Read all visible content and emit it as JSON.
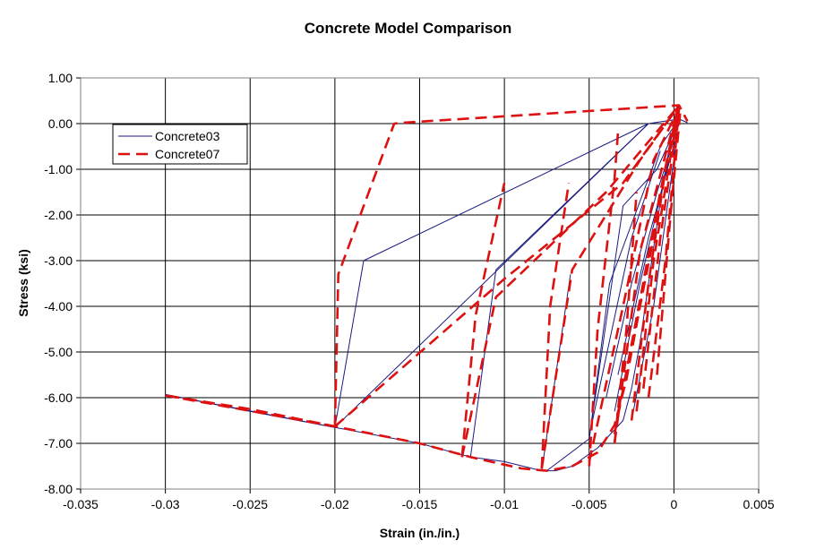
{
  "chart_data": {
    "type": "line",
    "title": "Concrete Model Comparison",
    "xlabel": "Strain (in./in.)",
    "ylabel": "Stress (ksi)",
    "xlim": [
      -0.035,
      0.005
    ],
    "ylim": [
      -8.0,
      1.0
    ],
    "xticks": [
      -0.035,
      -0.03,
      -0.025,
      -0.02,
      -0.015,
      -0.01,
      -0.005,
      0,
      0.005
    ],
    "xtick_labels": [
      "-0.035",
      "-0.03",
      "-0.025",
      "-0.02",
      "-0.015",
      "-0.01",
      "-0.005",
      "0",
      "0.005"
    ],
    "yticks": [
      1.0,
      0.0,
      -1.0,
      -2.0,
      -3.0,
      -4.0,
      -5.0,
      -6.0,
      -7.0,
      -8.0
    ],
    "ytick_labels": [
      "1.00",
      "0.00",
      "-1.00",
      "-2.00",
      "-3.00",
      "-4.00",
      "-5.00",
      "-6.00",
      "-7.00",
      "-8.00"
    ],
    "grid": true,
    "legend_position": "top-left",
    "series": [
      {
        "name": "Concrete03",
        "color": "#1a1a80",
        "style": "solid",
        "segments": [
          [
            [
              0,
              0
            ],
            [
              -0.0005,
              -1.0
            ],
            [
              -0.001,
              -2.2
            ],
            [
              -0.0015,
              -3.5
            ],
            [
              -0.002,
              -4.8
            ],
            [
              -0.0025,
              -5.8
            ],
            [
              -0.003,
              -6.5
            ],
            [
              -0.0045,
              -7.1
            ],
            [
              -0.006,
              -7.5
            ],
            [
              -0.007,
              -7.6
            ],
            [
              -0.0078,
              -7.6
            ],
            [
              -0.01,
              -7.4
            ],
            [
              -0.012,
              -7.3
            ],
            [
              -0.015,
              -7.0
            ],
            [
              -0.02,
              -6.65
            ],
            [
              -0.025,
              -6.3
            ],
            [
              -0.03,
              -5.93
            ]
          ],
          [
            [
              -0.03,
              -5.93
            ],
            [
              -0.02,
              -6.65
            ]
          ],
          [
            [
              -0.02,
              -6.65
            ],
            [
              -0.0183,
              -3.0
            ],
            [
              -0.0015,
              0.0
            ],
            [
              0.0003,
              0.1
            ]
          ],
          [
            [
              -0.02,
              -6.65
            ],
            [
              -0.0015,
              0.0
            ]
          ],
          [
            [
              -0.012,
              -7.3
            ],
            [
              -0.0105,
              -3.2
            ],
            [
              -0.0015,
              0.0
            ]
          ],
          [
            [
              -0.0078,
              -7.6
            ],
            [
              -0.0061,
              -3.3
            ]
          ],
          [
            [
              -0.0075,
              -7.6
            ],
            [
              -0.005,
              -6.9
            ],
            [
              -0.0038,
              -3.5
            ],
            [
              -0.0008,
              -0.5
            ],
            [
              0.0003,
              0.1
            ]
          ],
          [
            [
              -0.005,
              -6.9
            ],
            [
              -0.003,
              -1.8
            ],
            [
              -0.001,
              -1.0
            ],
            [
              0.0004,
              0.15
            ]
          ],
          [
            [
              -0.0048,
              -6.5
            ],
            [
              -0.0025,
              -2.5
            ],
            [
              -0.0008,
              -0.6
            ]
          ],
          [
            [
              -0.0035,
              -6.3
            ],
            [
              -0.002,
              -3.5
            ],
            [
              -0.0003,
              -0.8
            ]
          ],
          [
            [
              -0.0033,
              -5.5
            ],
            [
              -0.0015,
              -2.5
            ],
            [
              0.0002,
              -0.2
            ]
          ],
          [
            [
              -0.0025,
              -6.5
            ],
            [
              -0.0012,
              -4.0
            ],
            [
              0.0001,
              -0.5
            ]
          ],
          [
            [
              -0.004,
              -6.0
            ],
            [
              -0.0025,
              -3.5
            ],
            [
              -0.001,
              -1.5
            ],
            [
              0.0004,
              0.1
            ]
          ],
          [
            [
              0.0003,
              0.1
            ],
            [
              0.0008,
              0.02
            ]
          ]
        ]
      },
      {
        "name": "Concrete07",
        "color": "#dd1111",
        "style": "dashed",
        "segments": [
          [
            [
              0.0003,
              0.4
            ],
            [
              -0.0005,
              -1.0
            ],
            [
              -0.0012,
              -2.5
            ],
            [
              -0.002,
              -4.0
            ],
            [
              -0.0028,
              -5.6
            ],
            [
              -0.0035,
              -6.6
            ],
            [
              -0.0045,
              -7.2
            ],
            [
              -0.006,
              -7.5
            ],
            [
              -0.0075,
              -7.6
            ],
            [
              -0.009,
              -7.55
            ],
            [
              -0.012,
              -7.3
            ],
            [
              -0.015,
              -7.0
            ],
            [
              -0.02,
              -6.63
            ],
            [
              -0.025,
              -6.25
            ],
            [
              -0.03,
              -5.95
            ]
          ],
          [
            [
              -0.03,
              -5.95
            ],
            [
              -0.02,
              -6.63
            ]
          ],
          [
            [
              -0.02,
              -6.63
            ],
            [
              -0.0198,
              -3.3
            ],
            [
              -0.0165,
              0.0
            ],
            [
              -0.016,
              0.02
            ],
            [
              0.0003,
              0.4
            ],
            [
              0.0008,
              0.05
            ]
          ],
          [
            [
              -0.02,
              -6.63
            ],
            [
              -0.01,
              -3.4
            ],
            [
              -0.003,
              -1.3
            ],
            [
              0.0003,
              0.4
            ]
          ],
          [
            [
              -0.0125,
              -7.3
            ],
            [
              -0.0117,
              -4.2
            ],
            [
              -0.01,
              -1.3
            ]
          ],
          [
            [
              -0.0125,
              -7.3
            ],
            [
              -0.0105,
              -3.8
            ],
            [
              -0.004,
              -1.5
            ],
            [
              0.0003,
              0.4
            ]
          ],
          [
            [
              -0.0078,
              -7.55
            ],
            [
              -0.0073,
              -4.0
            ],
            [
              -0.0062,
              -1.3
            ]
          ],
          [
            [
              -0.0078,
              -7.55
            ],
            [
              -0.006,
              -3.2
            ],
            [
              -0.002,
              -0.8
            ],
            [
              0.0003,
              0.4
            ]
          ],
          [
            [
              -0.005,
              -7.5
            ],
            [
              -0.0045,
              -4.5
            ],
            [
              -0.0035,
              -1.2
            ],
            [
              -0.0033,
              -0.2
            ]
          ],
          [
            [
              -0.005,
              -7.4
            ],
            [
              -0.003,
              -4.0
            ],
            [
              -0.0012,
              -0.8
            ],
            [
              0.0003,
              0.35
            ]
          ],
          [
            [
              -0.0035,
              -7.0
            ],
            [
              -0.0028,
              -4.5
            ],
            [
              -0.0022,
              -1.5
            ]
          ],
          [
            [
              -0.0035,
              -7.0
            ],
            [
              -0.002,
              -2.8
            ],
            [
              0.0002,
              0.3
            ]
          ],
          [
            [
              -0.0025,
              -6.5
            ],
            [
              -0.0015,
              -3.5
            ],
            [
              -0.0005,
              -1.0
            ],
            [
              0.0003,
              0.35
            ]
          ],
          [
            [
              -0.0022,
              -6.3
            ],
            [
              -0.0012,
              -3.0
            ],
            [
              0.0002,
              0.2
            ]
          ],
          [
            [
              -0.0018,
              -5.8
            ],
            [
              -0.0008,
              -2.5
            ],
            [
              0.0003,
              0.3
            ]
          ],
          [
            [
              -0.0015,
              -6.0
            ],
            [
              -0.0005,
              -3.0
            ],
            [
              0.0003,
              0.35
            ]
          ],
          [
            [
              -0.001,
              -5.5
            ],
            [
              -0.0002,
              -2.0
            ],
            [
              0.0004,
              0.35
            ]
          ],
          [
            [
              -0.0035,
              -6.8
            ],
            [
              -0.0008,
              -1.5
            ],
            [
              0.0002,
              0.3
            ]
          ]
        ]
      }
    ]
  }
}
